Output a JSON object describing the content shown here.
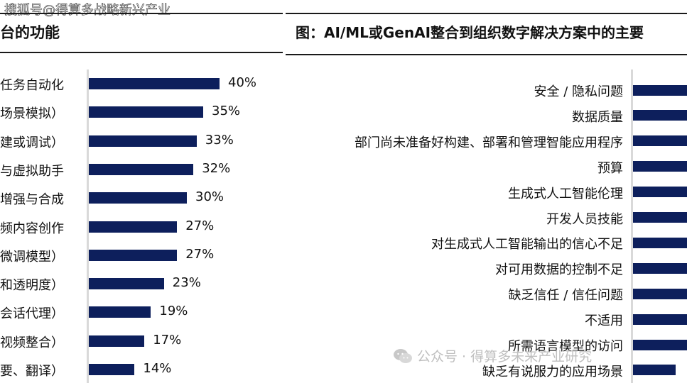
{
  "watermark_top": "搜狐号@得算多战略新兴产业",
  "watermark_bottom": "公众号 · 得算多未来产业研究",
  "left_panel": {
    "title": "台的功能"
  },
  "right_panel": {
    "title": "图：AI/ML或GenAI整合到组织数字解决方案中的主要"
  },
  "chart_data": [
    {
      "type": "bar",
      "orientation": "horizontal",
      "title": "台的功能",
      "categories": [
        "任务自动化",
        "场景模拟）",
        "建或调试）",
        "与虚拟助手",
        "增强与合成",
        "频内容创作",
        "微调模型）",
        "和透明度）",
        "会话代理）",
        "视频整合）",
        "要、翻译）"
      ],
      "values": [
        40,
        35,
        33,
        32,
        30,
        27,
        27,
        23,
        19,
        17,
        14
      ],
      "value_labels": [
        "40%",
        "35%",
        "33%",
        "32%",
        "30%",
        "27%",
        "27%",
        "23%",
        "19%",
        "17%",
        "14%"
      ],
      "unit": "%",
      "bar_color": "#0d1f5c"
    },
    {
      "type": "bar",
      "orientation": "horizontal",
      "title": "图：AI/ML或GenAI整合到组织数字解决方案中的主要",
      "categories": [
        "安全 / 隐私问题",
        "数据质量",
        "部门尚未准备好构建、部署和管理智能应用程序",
        "预算",
        "生成式人工智能伦理",
        "开发人员技能",
        "对生成式人工智能输出的信心不足",
        "对可用数据的控制不足",
        "缺乏信任 / 信任问题",
        "不适用",
        "所需语言模型的访问",
        "缺乏有说服力的应用场景"
      ],
      "bar_color": "#0d1f5c",
      "note": "bars cropped at right edge; values not visible"
    }
  ]
}
